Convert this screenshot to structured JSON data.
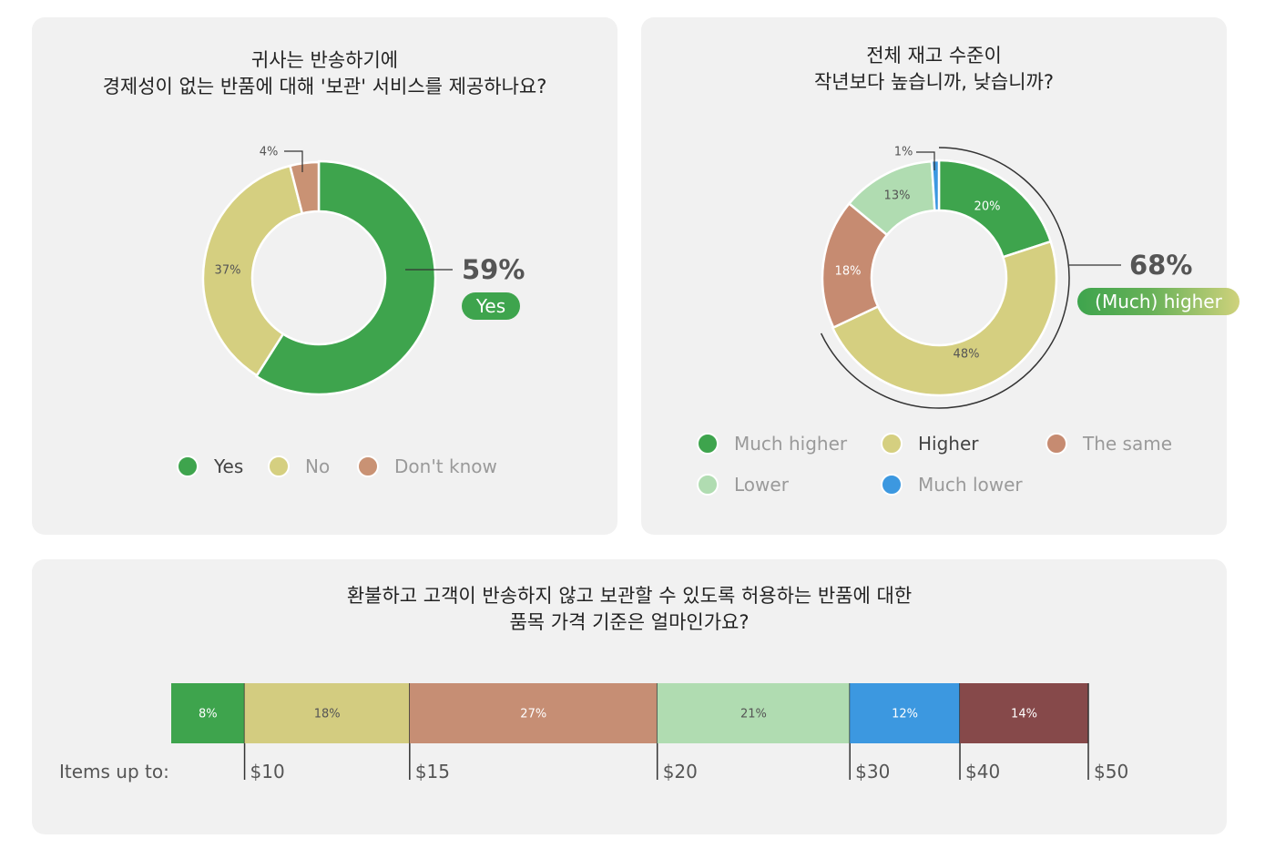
{
  "chart_data": [
    {
      "type": "pie",
      "variant": "donut",
      "title_lines": [
        "귀사는 반송하기에",
        "경제성이 없는 반품에 대해 '보관' 서비스를 제공하나요?"
      ],
      "slices": [
        {
          "name": "Yes",
          "value": 59,
          "label": "",
          "color": "#3ea44d"
        },
        {
          "name": "No",
          "value": 37,
          "label": "37%",
          "color": "#d5cf80"
        },
        {
          "name": "Don't know",
          "value": 4,
          "label": "4%",
          "color": "#c99274"
        }
      ],
      "callout": {
        "value": "59%",
        "tag": "Yes",
        "tag_color": "#3ea44d"
      },
      "legend": [
        {
          "label": "Yes",
          "color": "#3ea44d",
          "emphasis": true
        },
        {
          "label": "No",
          "color": "#d5cf80",
          "emphasis": false
        },
        {
          "label": "Don't know",
          "color": "#c99274",
          "emphasis": false
        }
      ]
    },
    {
      "type": "pie",
      "variant": "donut",
      "title_lines": [
        "전체 재고 수준이",
        "작년보다 높습니까, 낮습니까?"
      ],
      "slices": [
        {
          "name": "Much higher",
          "value": 20,
          "label": "20%",
          "color": "#3ea44d"
        },
        {
          "name": "Higher",
          "value": 48,
          "label": "48%",
          "color": "#d5cf80"
        },
        {
          "name": "The same",
          "value": 18,
          "label": "18%",
          "color": "#c68b71"
        },
        {
          "name": "Lower",
          "value": 13,
          "label": "13%",
          "color": "#b0dcb1"
        },
        {
          "name": "Much lower",
          "value": 1,
          "label": "1%",
          "color": "#3c98e0"
        }
      ],
      "callout": {
        "value": "68%",
        "tag": "(Much) higher",
        "tag_color_start": "#3ea44d",
        "tag_color_end": "#cfd27c"
      },
      "legend": [
        {
          "label": "Much higher",
          "color": "#3ea44d",
          "emphasis": false
        },
        {
          "label": "Higher",
          "color": "#d5cf80",
          "emphasis": true
        },
        {
          "label": "The same",
          "color": "#c68b71",
          "emphasis": false
        },
        {
          "label": "Lower",
          "color": "#b0dcb1",
          "emphasis": false
        },
        {
          "label": "Much lower",
          "color": "#3c98e0",
          "emphasis": false
        }
      ]
    },
    {
      "type": "bar",
      "variant": "stacked-100",
      "title_lines": [
        "환불하고 고객이 반송하지 않고 보관할 수 있도록 허용하는 반품에 대한",
        "품목 가격 기준은 얼마인가요?"
      ],
      "row_label": "Items up to:",
      "segments": [
        {
          "value": 8,
          "label": "8%",
          "color": "#3ea44d",
          "end_price": "$10",
          "dark_text": false
        },
        {
          "value": 18,
          "label": "18%",
          "color": "#d3cc80",
          "end_price": "$15",
          "dark_text": true
        },
        {
          "value": 27,
          "label": "27%",
          "color": "#c68e74",
          "end_price": "$20",
          "dark_text": false
        },
        {
          "value": 21,
          "label": "21%",
          "color": "#b0dcb1",
          "end_price": "$30",
          "dark_text": true
        },
        {
          "value": 12,
          "label": "12%",
          "color": "#3c98e0",
          "end_price": "$40",
          "dark_text": false
        },
        {
          "value": 14,
          "label": "14%",
          "color": "#86494a",
          "end_price": "$50",
          "dark_text": false
        }
      ]
    }
  ]
}
